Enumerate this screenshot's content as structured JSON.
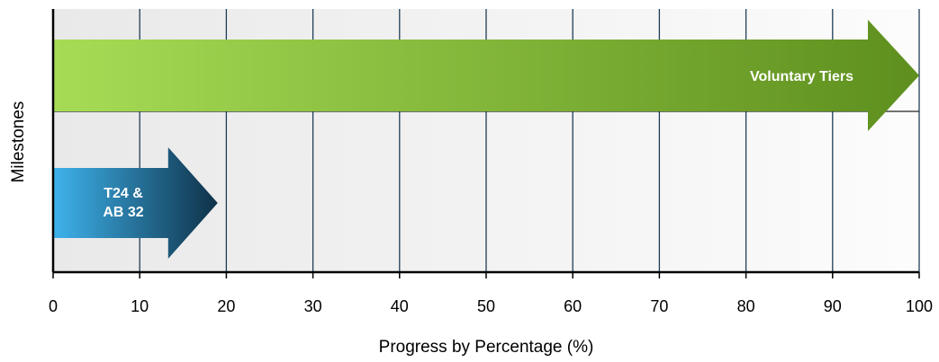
{
  "chart_data": {
    "type": "bar",
    "orientation": "horizontal",
    "title": "",
    "xlabel": "Progress by Percentage (%)",
    "ylabel": "Milestones",
    "xlim": [
      0,
      100
    ],
    "xticks": [
      0,
      10,
      20,
      30,
      40,
      50,
      60,
      70,
      80,
      90,
      100
    ],
    "grid": true,
    "legend": "none",
    "bars": [
      {
        "label": "Voluntary Tiers",
        "value": 100,
        "color_start": "#a6dc55",
        "color_end": "#5e8f1e"
      },
      {
        "label_lines": [
          "T24 &",
          "AB 32"
        ],
        "value": 19,
        "color_start": "#3eb3ec",
        "color_end": "#0f3148"
      }
    ]
  }
}
